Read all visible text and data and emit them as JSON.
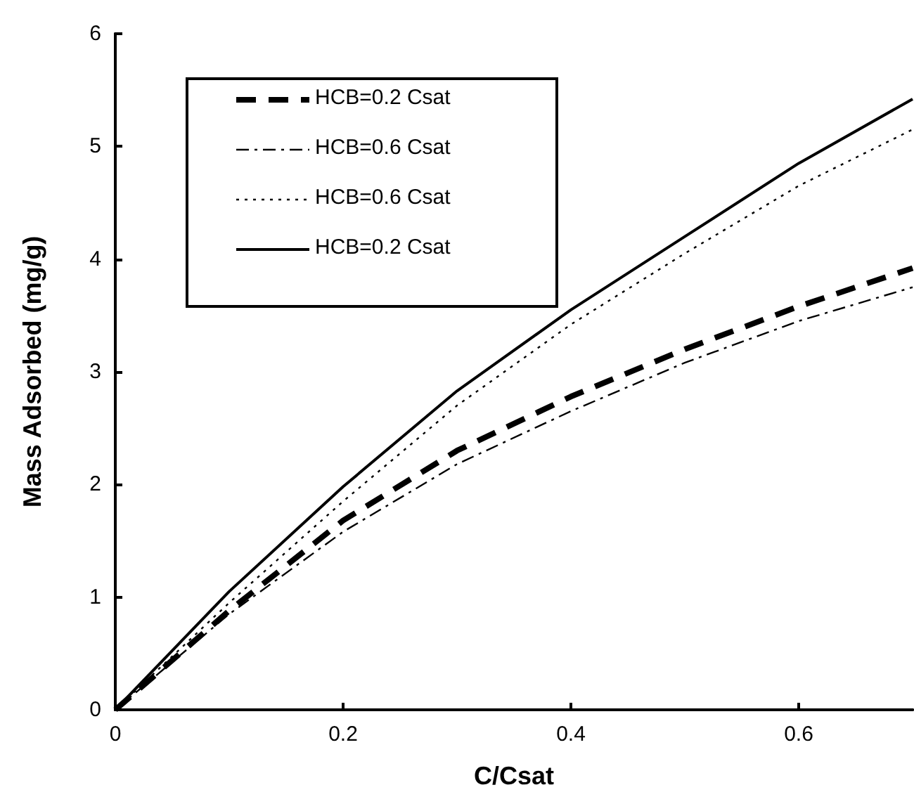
{
  "chart_data": {
    "type": "line",
    "xlabel": "C/Csat",
    "ylabel": "Mass Adsorbed (mg/g)",
    "x": [
      0,
      0.1,
      0.2,
      0.3,
      0.4,
      0.5,
      0.6,
      0.7
    ],
    "series": [
      {
        "name": "HCB=0.2 Csat",
        "color": "#000000",
        "line_style": "dashed",
        "values": [
          0,
          0.88,
          1.68,
          2.3,
          2.78,
          3.2,
          3.58,
          3.92
        ]
      },
      {
        "name": "HCB=0.6 Csat",
        "color": "#000000",
        "line_style": "dashdot",
        "values": [
          0,
          0.85,
          1.58,
          2.18,
          2.65,
          3.08,
          3.45,
          3.75
        ]
      },
      {
        "name": "HCB=0.6 Csat",
        "color": "#000000",
        "line_style": "dotted",
        "values": [
          0,
          0.95,
          1.85,
          2.7,
          3.42,
          4.05,
          4.65,
          5.15
        ]
      },
      {
        "name": "HCB=0.2 Csat",
        "color": "#000000",
        "line_style": "solid",
        "values": [
          0,
          1.05,
          1.98,
          2.83,
          3.55,
          4.2,
          4.85,
          5.42
        ]
      }
    ],
    "xlim": [
      0,
      0.7
    ],
    "xticks": [
      0,
      0.2,
      0.4,
      0.6
    ],
    "ylim": [
      0,
      6
    ],
    "yticks": [
      0,
      1,
      2,
      3,
      4,
      5,
      6
    ],
    "grid": false,
    "legend": "top left",
    "marker": "none"
  }
}
